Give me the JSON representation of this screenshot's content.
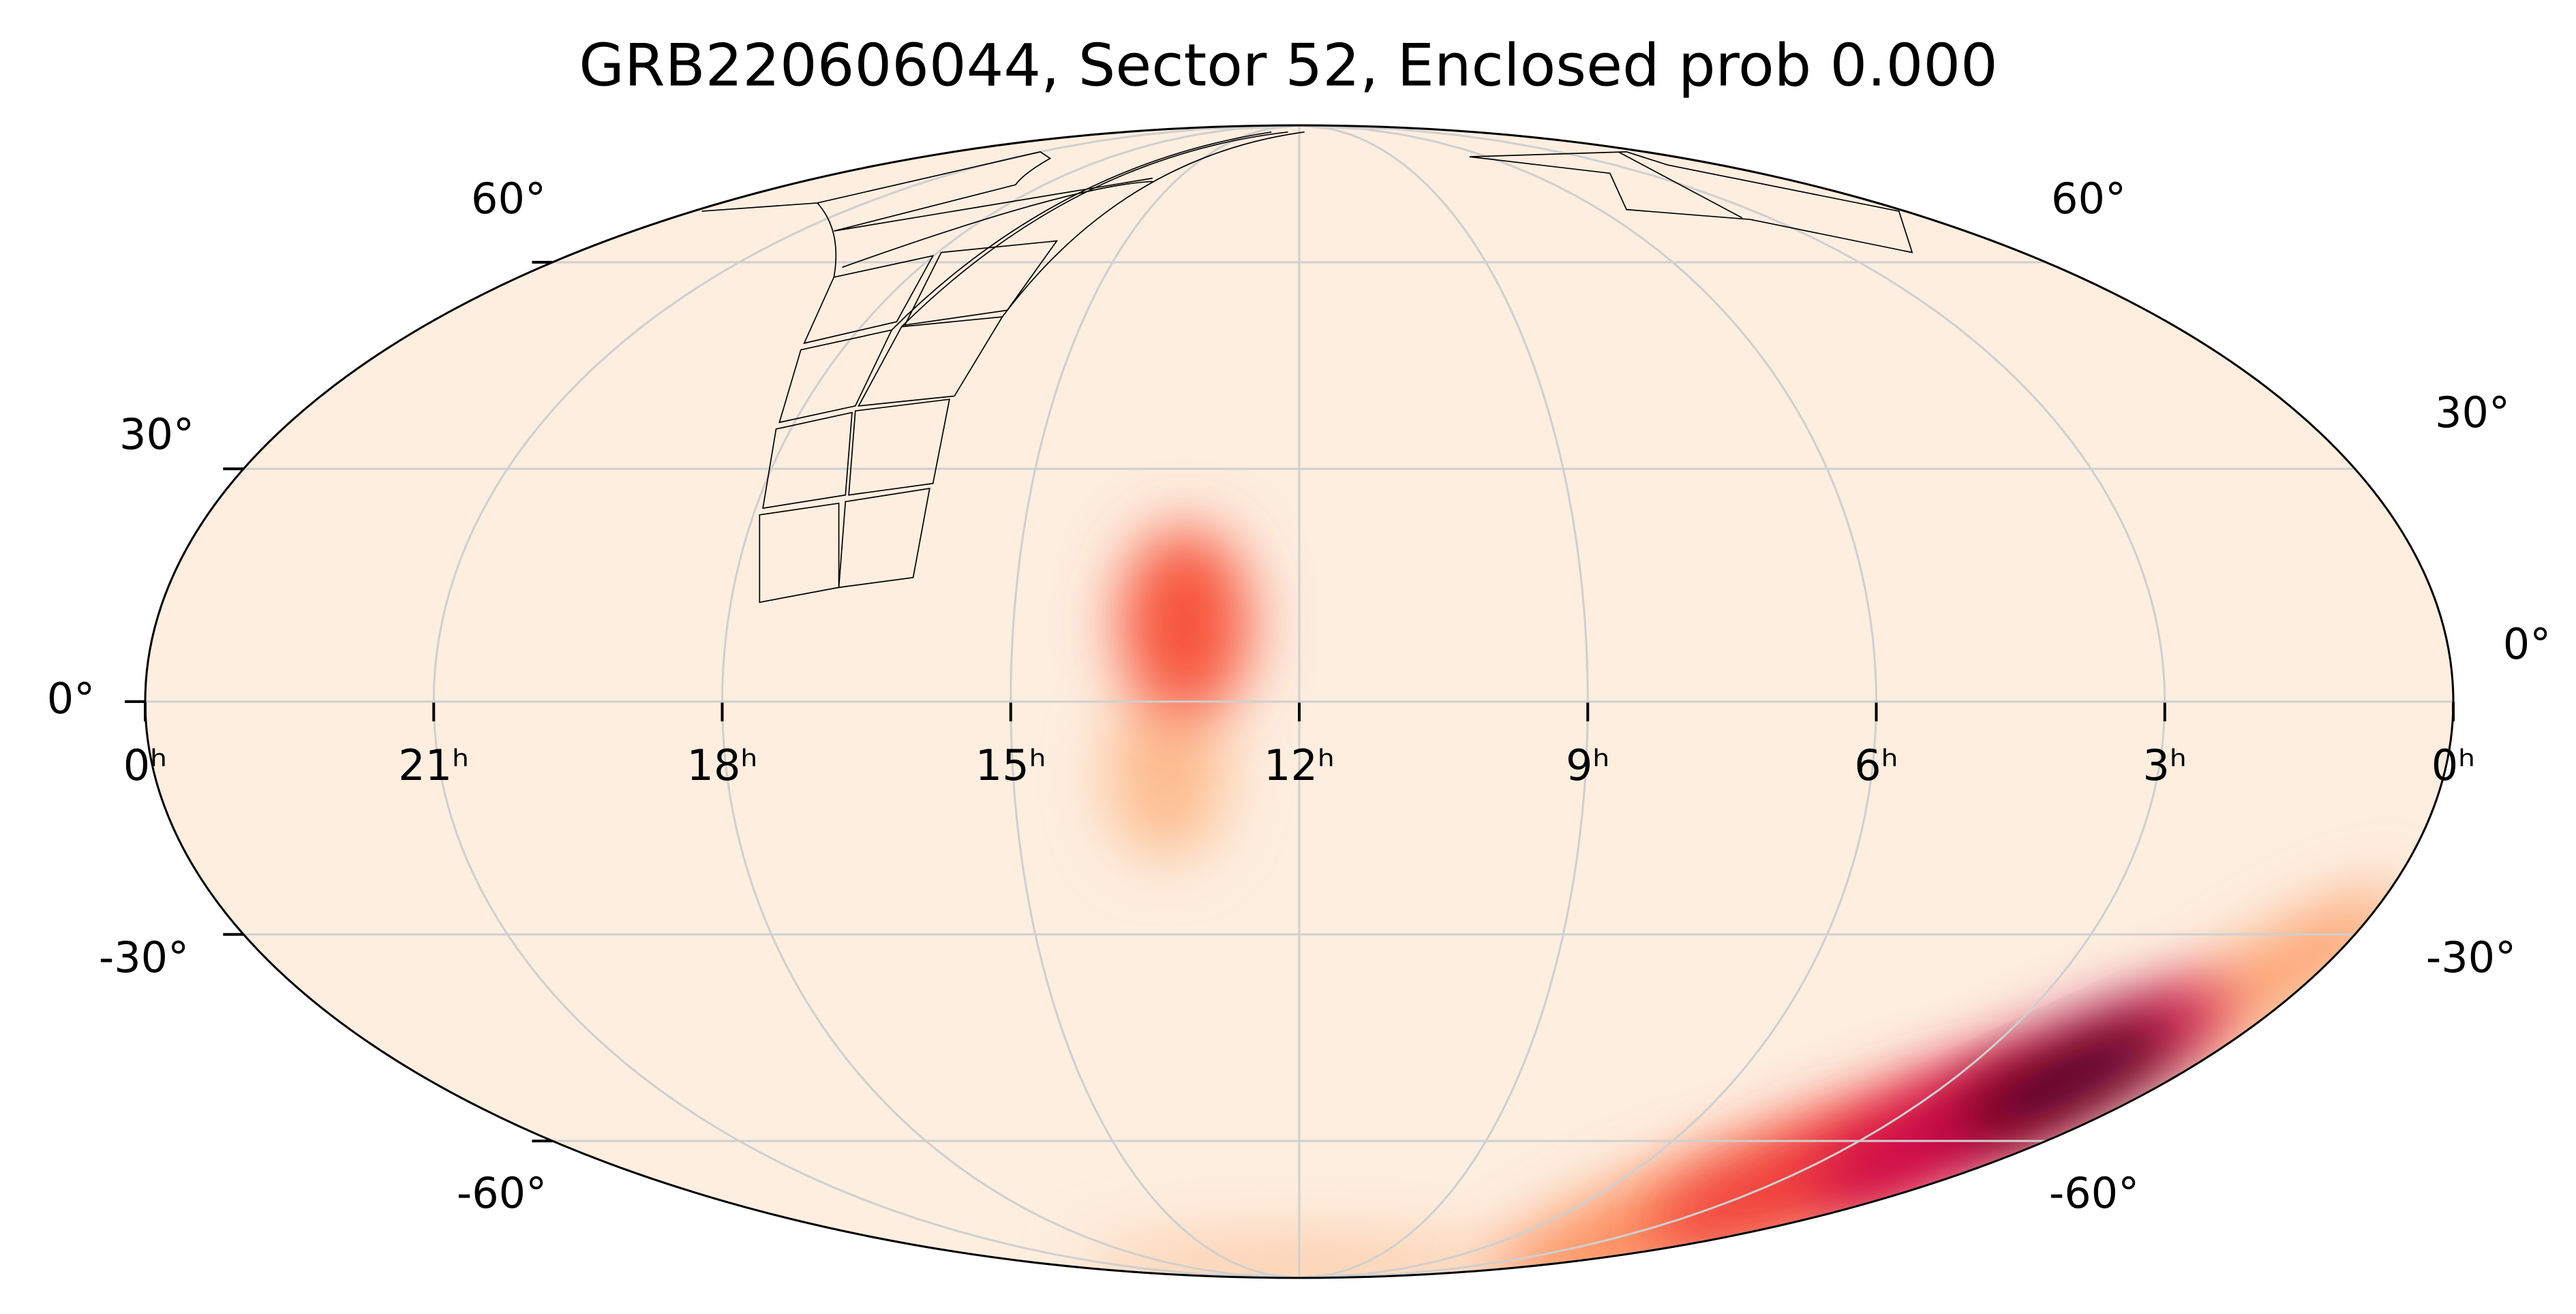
{
  "chart_data": {
    "type": "mollweide",
    "title": "GRB220606044, Sector 52, Enclosed prob 0.000",
    "xlim": [
      24,
      0
    ],
    "xticks": [
      {
        "value": 24,
        "label": "0ʰ"
      },
      {
        "value": 21,
        "label": "21ʰ"
      },
      {
        "value": 18,
        "label": "18ʰ"
      },
      {
        "value": 15,
        "label": "15ʰ"
      },
      {
        "value": 12,
        "label": "12ʰ"
      },
      {
        "value": 9,
        "label": "9ʰ"
      },
      {
        "value": 6,
        "label": "6ʰ"
      },
      {
        "value": 3,
        "label": "3ʰ"
      },
      {
        "value": 0,
        "label": "0ʰ"
      }
    ],
    "ylim": [
      -90,
      90
    ],
    "yticks": [
      {
        "value": 60,
        "label": "60°"
      },
      {
        "value": 30,
        "label": "30°"
      },
      {
        "value": 0,
        "label": "0°"
      },
      {
        "value": -30,
        "label": "-30°"
      },
      {
        "value": -60,
        "label": "-60°"
      }
    ],
    "grid": true,
    "peaks": [
      {
        "ra": 12,
        "dec": -85,
        "value": 0.08
      },
      {
        "ra": 13.4,
        "dec": -9.5,
        "value": 0.12
      },
      {
        "ra": 2.9,
        "dec": -72.8,
        "value": 0.25
      },
      {
        "ra": 0.47,
        "dec": -35.4,
        "value": 0.2
      },
      {
        "ra": 2.7,
        "dec": -62.4,
        "value": 0.55
      },
      {
        "ra": 13.2,
        "dec": 9.9,
        "value": 0.45
      },
      {
        "ra": 1.7,
        "dec": -53,
        "value": 0.75
      },
      {
        "ra": 1.4,
        "dec": -50.6,
        "value": 1.0
      }
    ]
  }
}
